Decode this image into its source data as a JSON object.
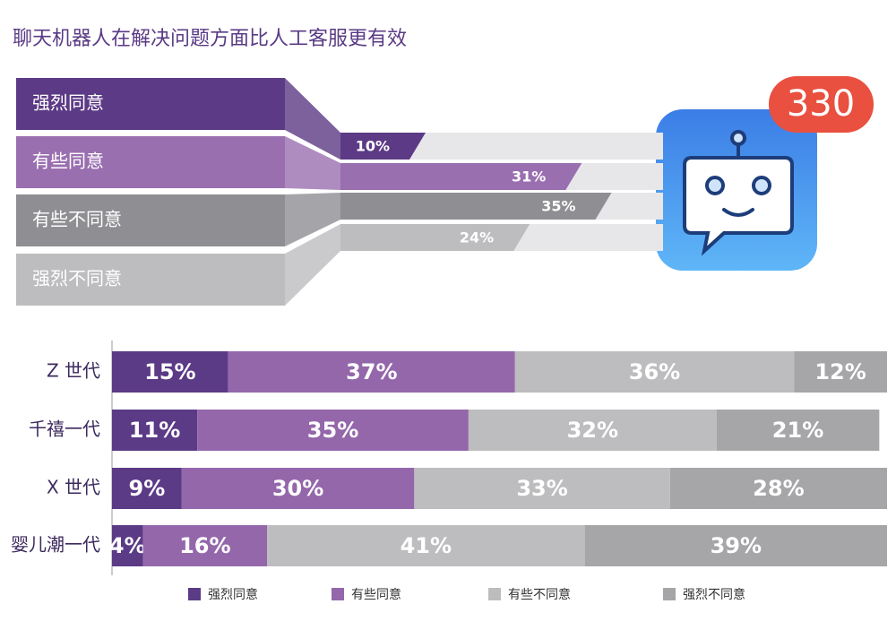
{
  "title": "聊天机器人在解决问题方面比人工客服更有效",
  "badge": "330",
  "chart_data": [
    {
      "type": "funnel-bar",
      "categories": [
        "强烈同意",
        "有些同意",
        "有些不同意",
        "强烈不同意"
      ],
      "values": [
        10,
        31,
        35,
        24
      ],
      "value_labels": [
        "10%",
        "31%",
        "35%",
        "24%"
      ],
      "colors": [
        "#5c3a85",
        "#9a6fb0",
        "#8f8f93",
        "#bdbdc0"
      ]
    },
    {
      "type": "stacked-bar",
      "categories": [
        "Z 世代",
        "千禧一代",
        "X 世代",
        "婴儿潮一代"
      ],
      "series": [
        {
          "name": "强烈同意",
          "color": "#5b3a86",
          "values": [
            15,
            11,
            9,
            4
          ],
          "value_labels": [
            "15%",
            "11%",
            "9%",
            "4%"
          ]
        },
        {
          "name": "有些同意",
          "color": "#9467ab",
          "values": [
            37,
            35,
            30,
            16
          ],
          "value_labels": [
            "37%",
            "35%",
            "30%",
            "16%"
          ]
        },
        {
          "name": "有些不同意",
          "color": "#bdbdbf",
          "values": [
            36,
            32,
            33,
            41
          ],
          "value_labels": [
            "36%",
            "32%",
            "33%",
            "41%"
          ]
        },
        {
          "name": "强烈不同意",
          "color": "#a6a6a9",
          "values": [
            12,
            21,
            28,
            39
          ],
          "value_labels": [
            "12%",
            "21%",
            "28%",
            "39%"
          ]
        }
      ],
      "legend": "bottom"
    }
  ]
}
